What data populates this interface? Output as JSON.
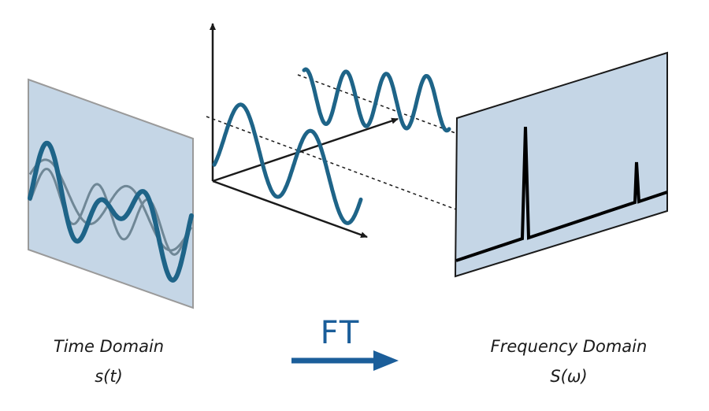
{
  "labels": {
    "time_domain": "Time Domain",
    "time_signal": "s(t)",
    "transform": "FT",
    "frequency_domain": "Frequency Domain",
    "frequency_signal": "S(ω)"
  },
  "colors": {
    "panel_fill": "#c5d6e6",
    "wave": "#1e6488",
    "component_wave": "#6f8796",
    "transform_arrow": "#1b5e9a",
    "axes": "#1a1a1a"
  }
}
